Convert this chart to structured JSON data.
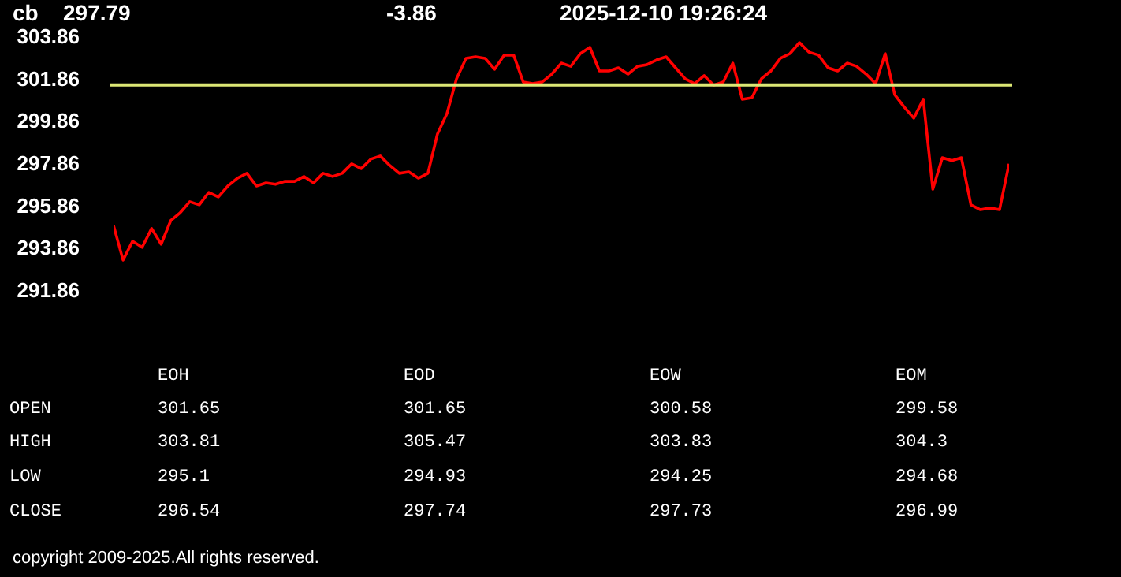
{
  "chart_data": {
    "type": "line",
    "title": "cb",
    "subtitle": "297.79",
    "categories": [
      null,
      null,
      null,
      null,
      null,
      null,
      null,
      null,
      null,
      null,
      null,
      null,
      null,
      null,
      null,
      null,
      null,
      null,
      null,
      null,
      null,
      null,
      null,
      null,
      null,
      null,
      null,
      null,
      null,
      null,
      null,
      null,
      null,
      null,
      null,
      null,
      null,
      null,
      null,
      null,
      null,
      null,
      null,
      null,
      null,
      null,
      null,
      null,
      null,
      null,
      null,
      null,
      null,
      null,
      null,
      null,
      null,
      null,
      null,
      null,
      null,
      null,
      null,
      null,
      null,
      null,
      null,
      null,
      null,
      null,
      null,
      null,
      null,
      null,
      null,
      null,
      null,
      null,
      null,
      null,
      null,
      null,
      null,
      null,
      null,
      null,
      null,
      null,
      null,
      null,
      null,
      null,
      null,
      null,
      null
    ],
    "series": [
      {
        "color": "#ff0000",
        "values": [
          294.92,
          293.28,
          294.17,
          293.88,
          294.77,
          294.03,
          295.14,
          295.52,
          296.04,
          295.89,
          296.48,
          296.26,
          296.78,
          297.15,
          297.38,
          296.78,
          296.93,
          296.86,
          297.0,
          297.0,
          297.23,
          296.93,
          297.38,
          297.23,
          297.38,
          297.83,
          297.6,
          298.05,
          298.2,
          297.75,
          297.38,
          297.45,
          297.15,
          297.38,
          299.24,
          300.21,
          301.85,
          302.82,
          302.89,
          302.82,
          302.3,
          302.97,
          302.97,
          301.7,
          301.62,
          301.7,
          302.07,
          302.59,
          302.44,
          303.04,
          303.34,
          302.22,
          302.22,
          302.37,
          302.07,
          302.44,
          302.52,
          302.74,
          302.89,
          302.37,
          301.85,
          301.62,
          302.0,
          301.55,
          301.7,
          302.59,
          300.88,
          300.95,
          301.85,
          302.22,
          302.82,
          303.04,
          303.56,
          303.11,
          302.97,
          302.37,
          302.22,
          302.59,
          302.44,
          302.07,
          301.62,
          303.04,
          301.1,
          300.51,
          299.99,
          300.88,
          296.63,
          298.12,
          297.98,
          298.12,
          295.89,
          295.66,
          295.74,
          295.66,
          297.83
        ]
      }
    ],
    "ylim": [
      291.86,
      303.86
    ],
    "yticks": [
      291.86,
      293.86,
      295.86,
      297.86,
      299.86,
      301.86,
      303.86
    ],
    "grid": false,
    "ref_lines": [
      {
        "axis": "y",
        "value": 301.56,
        "color": "#dce775"
      }
    ],
    "annotations": [
      "-3.86",
      "2025-12-10   19:26:24",
      "EOH",
      "EOD",
      "EOW",
      "EOM",
      "OPEN",
      "301.65",
      "301.65",
      "300.58",
      "299.58",
      "HIGH",
      "303.81",
      "305.47",
      "303.83",
      "304.3",
      "LOW",
      "295.1",
      "294.93",
      "294.25",
      "294.68",
      "CLOSE",
      "296.54",
      "297.74",
      "297.73",
      "296.99",
      "copyright 2009-2025.All rights reserved."
    ]
  }
}
